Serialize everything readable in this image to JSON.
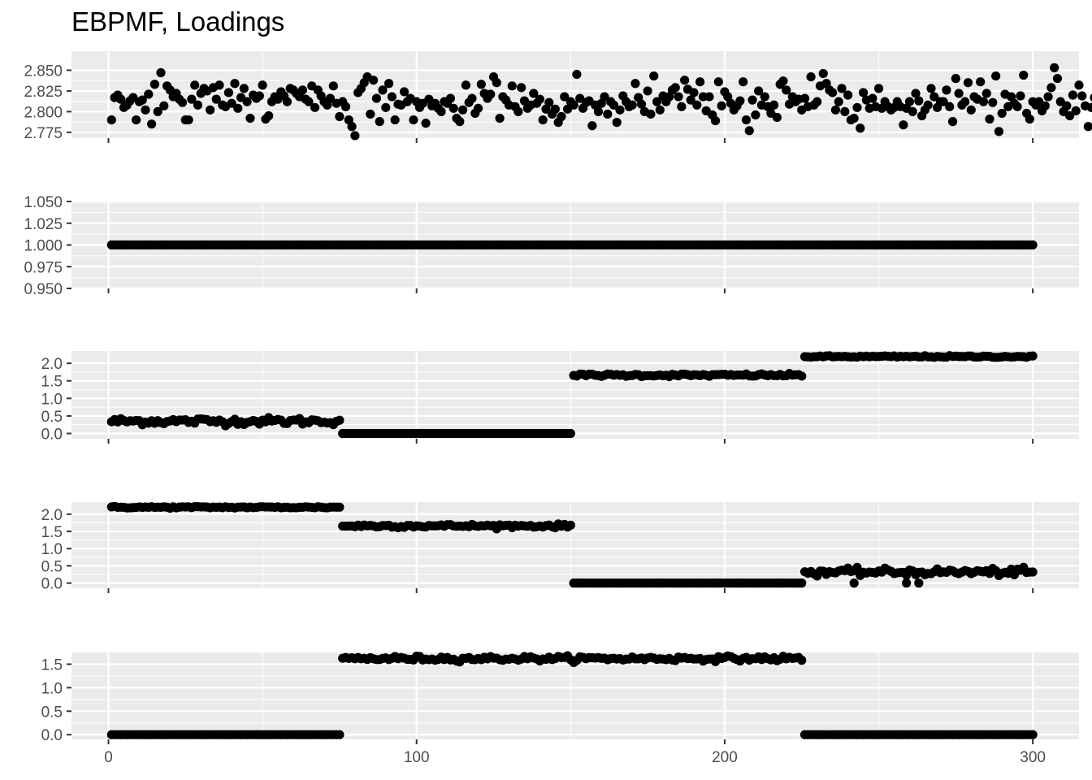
{
  "title": "EBPMF, Loadings",
  "chart_data": {
    "type": "scatter",
    "title": "EBPMF, Loadings",
    "xlabel": "",
    "ylabel": "",
    "grid": true,
    "n_points": 300,
    "x_range": [
      1,
      300
    ],
    "x_ticks": [
      "0",
      "100",
      "200",
      "300"
    ],
    "shared_xlim": [
      -12,
      315
    ],
    "point_color": "#000000",
    "panel_background": "#ebebeb",
    "grid_color": "#ffffff",
    "panels": [
      {
        "name": "",
        "ylim": [
          2.768,
          2.873
        ],
        "y_ticks": [
          "2.775",
          "2.800",
          "2.825",
          "2.850"
        ],
        "tick_values": [
          2.775,
          2.8,
          2.825,
          2.85
        ],
        "values": [
          2.79,
          2.817,
          2.82,
          2.815,
          2.805,
          2.808,
          2.813,
          2.817,
          2.79,
          2.812,
          2.814,
          2.802,
          2.821,
          2.785,
          2.833,
          2.8,
          2.847,
          2.807,
          2.831,
          2.826,
          2.818,
          2.822,
          2.815,
          2.811,
          2.79,
          2.79,
          2.815,
          2.832,
          2.808,
          2.822,
          2.828,
          2.825,
          2.802,
          2.829,
          2.815,
          2.832,
          2.808,
          2.806,
          2.823,
          2.81,
          2.834,
          2.804,
          2.817,
          2.828,
          2.812,
          2.792,
          2.82,
          2.816,
          2.819,
          2.832,
          2.791,
          2.795,
          2.812,
          2.818,
          2.815,
          2.824,
          2.819,
          2.812,
          2.828,
          2.826,
          2.822,
          2.818,
          2.826,
          2.815,
          2.812,
          2.831,
          2.805,
          2.826,
          2.819,
          2.812,
          2.808,
          2.816,
          2.831,
          2.81,
          2.794,
          2.812,
          2.806,
          2.79,
          2.782,
          2.771,
          2.823,
          2.828,
          2.835,
          2.842,
          2.797,
          2.838,
          2.816,
          2.788,
          2.826,
          2.805,
          2.834,
          2.818,
          2.79,
          2.809,
          2.808,
          2.824,
          2.812,
          2.816,
          2.79,
          2.812,
          2.805,
          2.81,
          2.786,
          2.815,
          2.807,
          2.81,
          2.804,
          2.8,
          2.812,
          2.81,
          2.816,
          2.804,
          2.792,
          2.788,
          2.802,
          2.832,
          2.811,
          2.816,
          2.798,
          2.804,
          2.833,
          2.822,
          2.816,
          2.821,
          2.842,
          2.835,
          2.792,
          2.818,
          2.814,
          2.808,
          2.831,
          2.806,
          2.8,
          2.829,
          2.813,
          2.804,
          2.808,
          2.822,
          2.81,
          2.815,
          2.79,
          2.803,
          2.811,
          2.797,
          2.803,
          2.787,
          2.794,
          2.818,
          2.803,
          2.812,
          2.808,
          2.845,
          2.816,
          2.804,
          2.811,
          2.813,
          2.783,
          2.808,
          2.8,
          2.81,
          2.818,
          2.797,
          2.812,
          2.808,
          2.787,
          2.802,
          2.819,
          2.812,
          2.806,
          2.808,
          2.834,
          2.817,
          2.809,
          2.8,
          2.825,
          2.797,
          2.843,
          2.812,
          2.802,
          2.819,
          2.812,
          2.818,
          2.826,
          2.829,
          2.818,
          2.806,
          2.838,
          2.827,
          2.814,
          2.823,
          2.808,
          2.836,
          2.818,
          2.801,
          2.818,
          2.796,
          2.789,
          2.836,
          2.807,
          2.824,
          2.818,
          2.81,
          2.802,
          2.807,
          2.813,
          2.836,
          2.79,
          2.777,
          2.814,
          2.796,
          2.825,
          2.808,
          2.818,
          2.806,
          2.798,
          2.808,
          2.793,
          2.833,
          2.837,
          2.826,
          2.809,
          2.818,
          2.812,
          2.815,
          2.802,
          2.816,
          2.806,
          2.842,
          2.808,
          2.812,
          2.831,
          2.846,
          2.834,
          2.826,
          2.823,
          2.802,
          2.812,
          2.828,
          2.8,
          2.82,
          2.79,
          2.792,
          2.805,
          2.78,
          2.823,
          2.814,
          2.804,
          2.816,
          2.806,
          2.828,
          2.804,
          2.812,
          2.806,
          2.802,
          2.805,
          2.812,
          2.806,
          2.784,
          2.804,
          2.812,
          2.8,
          2.822,
          2.813,
          2.795,
          2.802,
          2.808,
          2.828,
          2.818,
          2.805,
          2.812,
          2.812,
          2.826,
          2.806,
          2.788,
          2.84,
          2.822,
          2.808,
          2.812,
          2.835,
          2.802,
          2.818,
          2.815,
          2.836,
          2.812,
          2.822,
          2.791,
          2.811,
          2.843,
          2.776,
          2.798,
          2.821,
          2.806,
          2.818,
          2.81,
          2.806,
          2.819,
          2.844,
          2.798,
          2.791,
          2.812,
          2.808,
          2.812,
          2.801,
          2.807,
          2.818,
          2.829,
          2.853,
          2.84,
          2.812,
          2.8,
          2.807,
          2.795,
          2.82,
          2.801,
          2.832,
          2.819,
          2.807,
          2.782,
          2.805,
          2.817
        ]
      },
      {
        "name": "",
        "ylim": [
          0.95,
          1.05
        ],
        "y_ticks": [
          "0.950",
          "0.975",
          "1.000",
          "1.025",
          "1.050"
        ],
        "tick_values": [
          0.95,
          0.975,
          1.0,
          1.025,
          1.05
        ],
        "segments": [
          {
            "from": 1,
            "to": 300,
            "level": 1.0,
            "noise": 0
          }
        ]
      },
      {
        "name": "",
        "ylim": [
          -0.15,
          2.35
        ],
        "y_ticks": [
          "0.0",
          "0.5",
          "1.0",
          "1.5",
          "2.0"
        ],
        "tick_values": [
          0,
          0.5,
          1,
          1.5,
          2
        ],
        "segments": [
          {
            "from": 1,
            "to": 75,
            "level": 0.35,
            "noise": 0.05
          },
          {
            "from": 76,
            "to": 150,
            "level": 0.0,
            "noise": 0
          },
          {
            "from": 151,
            "to": 225,
            "level": 1.66,
            "noise": 0.02
          },
          {
            "from": 226,
            "to": 300,
            "level": 2.19,
            "noise": 0.012
          }
        ]
      },
      {
        "name": "",
        "ylim": [
          -0.15,
          2.35
        ],
        "y_ticks": [
          "0.0",
          "0.5",
          "1.0",
          "1.5",
          "2.0"
        ],
        "tick_values": [
          0,
          0.5,
          1,
          1.5,
          2
        ],
        "segments": [
          {
            "from": 1,
            "to": 75,
            "level": 2.2,
            "noise": 0.012
          },
          {
            "from": 76,
            "to": 150,
            "level": 1.66,
            "noise": 0.025
          },
          {
            "from": 151,
            "to": 225,
            "level": 0.0,
            "noise": 0
          },
          {
            "from": 226,
            "to": 300,
            "level": 0.32,
            "noise": 0.05
          }
        ],
        "outliers": [
          {
            "x": 242,
            "y": 0.0
          },
          {
            "x": 259,
            "y": 0.0
          },
          {
            "x": 263,
            "y": 0.0
          }
        ]
      },
      {
        "name": "",
        "ylim": [
          -0.1,
          1.75
        ],
        "y_ticks": [
          "0.0",
          "0.5",
          "1.0",
          "1.5"
        ],
        "tick_values": [
          0,
          0.5,
          1,
          1.5
        ],
        "segments": [
          {
            "from": 1,
            "to": 75,
            "level": 0.0,
            "noise": 0
          },
          {
            "from": 76,
            "to": 225,
            "level": 1.62,
            "noise": 0.025
          },
          {
            "from": 226,
            "to": 300,
            "level": 0.0,
            "noise": 0
          }
        ]
      }
    ]
  }
}
